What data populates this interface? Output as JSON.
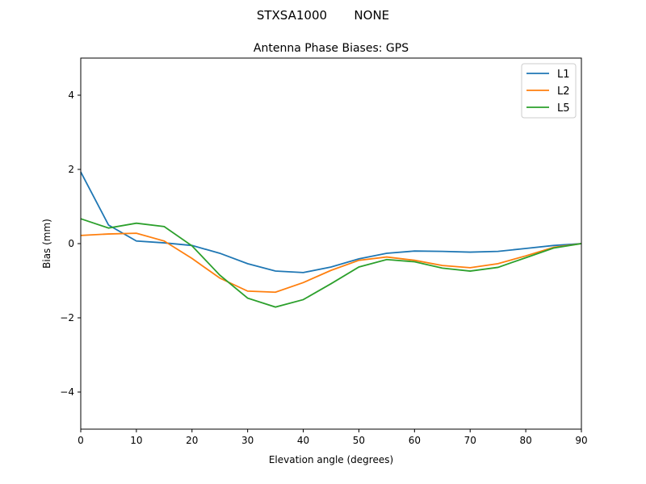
{
  "suptitle": "STXSA1000       NONE",
  "chart_data": {
    "type": "line",
    "title": "Antenna Phase Biases: GPS",
    "xlabel": "Elevation angle (degrees)",
    "ylabel": "Bias (mm)",
    "xlim": [
      0,
      90
    ],
    "ylim": [
      -5,
      5
    ],
    "xticks": [
      0,
      10,
      20,
      30,
      40,
      50,
      60,
      70,
      80,
      90
    ],
    "yticks": [
      -4,
      -2,
      0,
      2,
      4
    ],
    "ytick_labels": [
      "−4",
      "−2",
      "0",
      "2",
      "4"
    ],
    "grid": false,
    "legend_position": "top-right",
    "x": [
      0,
      5,
      10,
      15,
      20,
      25,
      30,
      35,
      40,
      45,
      50,
      55,
      60,
      65,
      70,
      75,
      80,
      85,
      90
    ],
    "series": [
      {
        "name": "L1",
        "color": "#1f77b4",
        "values": [
          1.93,
          0.5,
          0.07,
          0.02,
          -0.05,
          -0.26,
          -0.54,
          -0.74,
          -0.78,
          -0.63,
          -0.41,
          -0.26,
          -0.2,
          -0.21,
          -0.23,
          -0.21,
          -0.13,
          -0.05,
          0
        ]
      },
      {
        "name": "L2",
        "color": "#ff7f0e",
        "values": [
          0.22,
          0.26,
          0.28,
          0.07,
          -0.4,
          -0.93,
          -1.28,
          -1.31,
          -1.05,
          -0.72,
          -0.45,
          -0.36,
          -0.45,
          -0.59,
          -0.65,
          -0.54,
          -0.33,
          -0.1,
          0
        ]
      },
      {
        "name": "L5",
        "color": "#2ca02c",
        "values": [
          0.67,
          0.42,
          0.55,
          0.46,
          -0.06,
          -0.85,
          -1.47,
          -1.71,
          -1.51,
          -1.08,
          -0.63,
          -0.43,
          -0.49,
          -0.66,
          -0.74,
          -0.64,
          -0.38,
          -0.12,
          0
        ]
      }
    ]
  }
}
